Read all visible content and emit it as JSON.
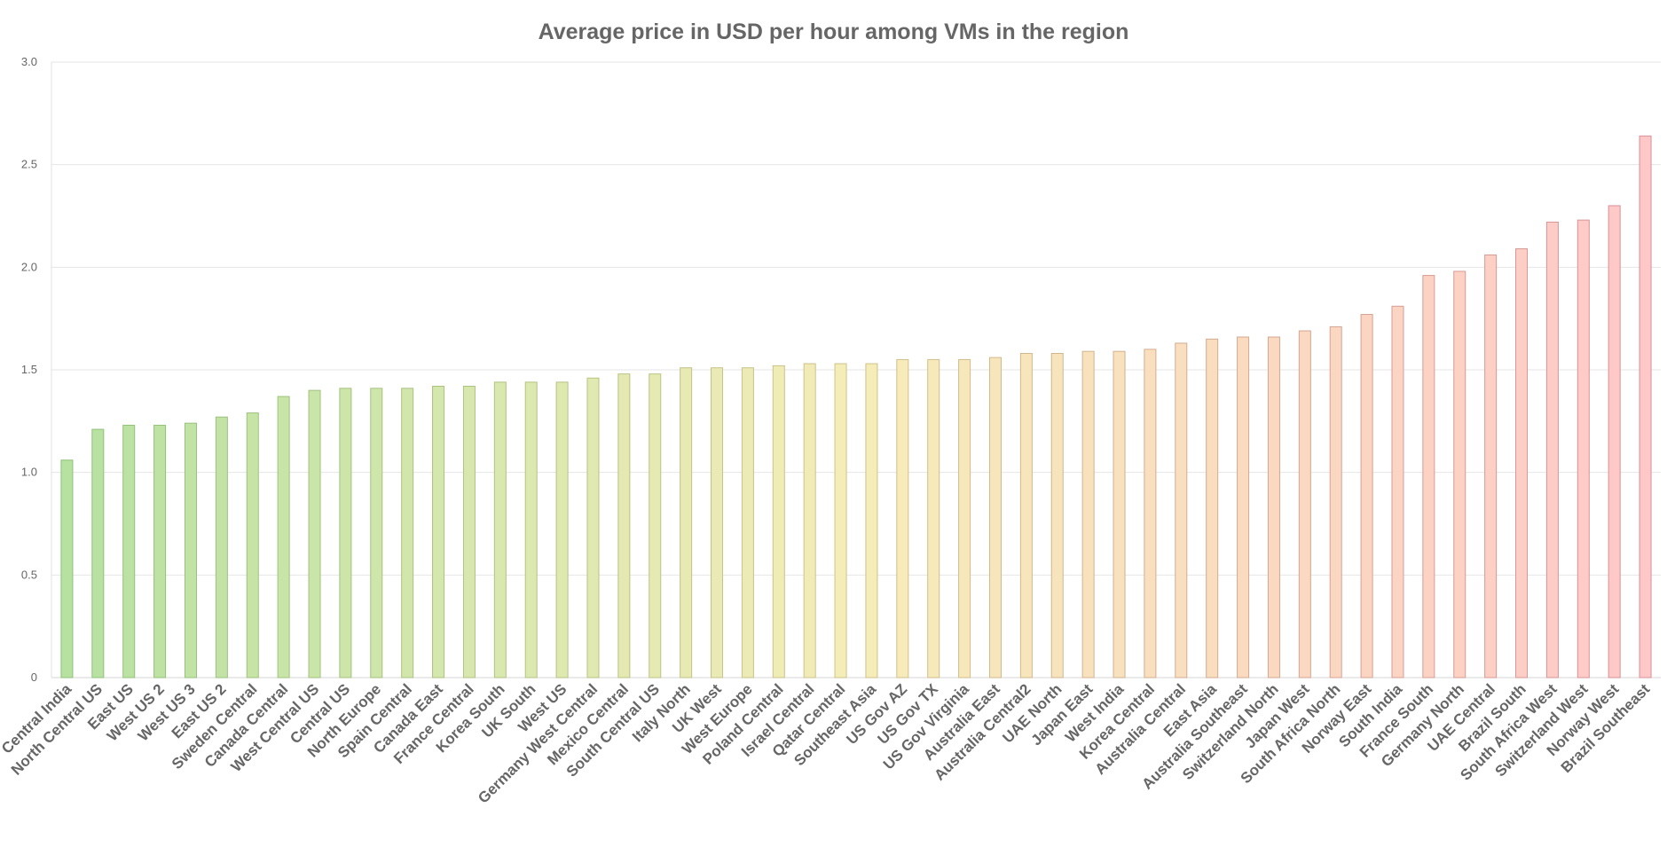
{
  "chart_data": {
    "type": "bar",
    "title": "Average price in USD per hour among VMs in the region",
    "xlabel": "",
    "ylabel": "",
    "ylim": [
      0,
      3
    ],
    "yticks": [
      "0",
      "0.5",
      "1.0",
      "1.5",
      "2.0",
      "2.5",
      "3.0"
    ],
    "grid": true,
    "legend": "none",
    "color_gradient": [
      "#b7e1a1",
      "#f5edb8",
      "#ffc8c8"
    ],
    "border_gradient": [
      "#8dc178",
      "#cfc28a",
      "#d88f98"
    ],
    "categories": [
      "Central India",
      "North Central US",
      "East US",
      "West US 2",
      "West US 3",
      "East US 2",
      "Sweden Central",
      "Canada Central",
      "West Central US",
      "Central US",
      "North Europe",
      "Spain Central",
      "Canada East",
      "France Central",
      "Korea South",
      "UK South",
      "West US",
      "Germany West Central",
      "Mexico Central",
      "South Central US",
      "Italy North",
      "UK West",
      "West Europe",
      "Poland Central",
      "Israel Central",
      "Qatar Central",
      "Southeast Asia",
      "US Gov AZ",
      "US Gov TX",
      "US Gov Virginia",
      "Australia East",
      "Australia Central2",
      "UAE North",
      "Japan East",
      "West India",
      "Korea Central",
      "Australia Central",
      "East Asia",
      "Australia Southeast",
      "Switzerland North",
      "Japan West",
      "South Africa North",
      "Norway East",
      "South India",
      "France South",
      "Germany North",
      "UAE Central",
      "Brazil South",
      "South Africa West",
      "Switzerland West",
      "Norway West",
      "Brazil Southeast"
    ],
    "values": [
      1.06,
      1.21,
      1.23,
      1.23,
      1.24,
      1.27,
      1.29,
      1.37,
      1.4,
      1.41,
      1.41,
      1.41,
      1.42,
      1.42,
      1.44,
      1.44,
      1.44,
      1.46,
      1.48,
      1.48,
      1.51,
      1.51,
      1.51,
      1.52,
      1.53,
      1.53,
      1.53,
      1.55,
      1.55,
      1.55,
      1.56,
      1.58,
      1.58,
      1.59,
      1.59,
      1.6,
      1.63,
      1.65,
      1.66,
      1.66,
      1.69,
      1.71,
      1.77,
      1.81,
      1.96,
      1.98,
      2.06,
      2.09,
      2.22,
      2.23,
      2.3,
      2.64
    ]
  }
}
